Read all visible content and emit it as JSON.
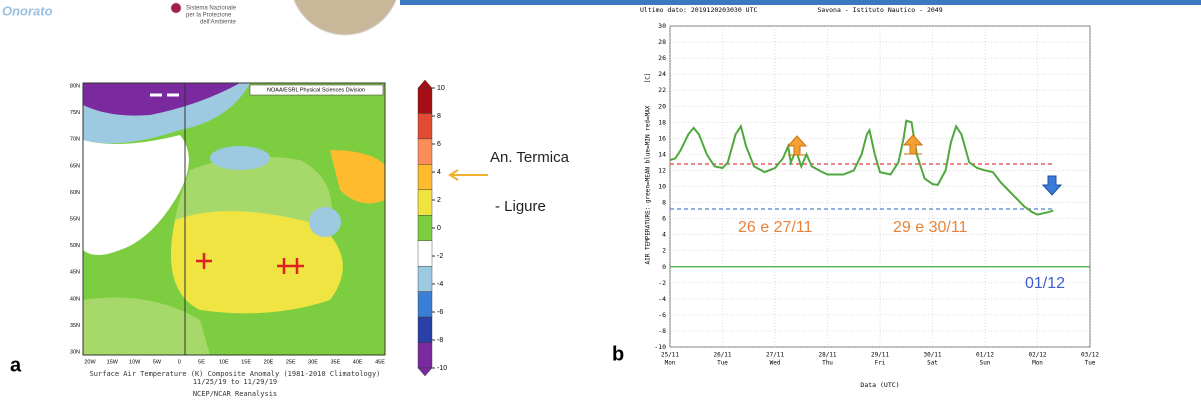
{
  "header": {
    "brand": "Onorato",
    "logo_text": [
      "Sistema Nazionale",
      "per la Protezione",
      "dell'Ambiente"
    ]
  },
  "panel_a": {
    "label": "a",
    "map_header": "NOAA/ESRL Physical Sciences Division",
    "lat_labels": [
      "80N",
      "75N",
      "70N",
      "65N",
      "60N",
      "55N",
      "50N",
      "45N",
      "40N",
      "35N",
      "30N"
    ],
    "lon_labels": [
      "20W",
      "15W",
      "10W",
      "5W",
      "0",
      "5E",
      "10E",
      "15E",
      "20E",
      "25E",
      "30E",
      "35E",
      "40E",
      "45E"
    ],
    "colorbar": {
      "ticks": [
        10,
        8,
        6,
        4,
        2,
        0,
        -2,
        -4,
        -6,
        -8,
        -10
      ],
      "colors": [
        "#a50f15",
        "#e34a33",
        "#fc8d59",
        "#fdbb2d",
        "#f0e442",
        "#7ccd3f",
        "#ffffff",
        "#9ecae1",
        "#3a7fd5",
        "#2b3fa8",
        "#7a2a9e"
      ]
    },
    "caption": [
      "Surface Air Temperature (K) Composite Anomaly (1981-2010 Climatology)",
      "11/25/19 to 11/29/19",
      "NCEP/NCAR Reanalysis"
    ]
  },
  "notes": {
    "anomaly": "An. Termica",
    "region": "- Ligure"
  },
  "chart_data": {
    "type": "line",
    "label": "b",
    "subtitle": "Ultimo dato: 2019120203030 UTC",
    "title": "Savona - Istituto Nautico - 2049",
    "ylabel": "AIR TEMPERATURE: green=MEAN blue=MIN red=MAX",
    "yunit": "[C]",
    "xlabel": "Data (UTC)",
    "xlim": [
      0,
      8
    ],
    "xticks": [
      {
        "value": 0,
        "label": "25/11"
      },
      {
        "value": 1,
        "label": "26/11"
      },
      {
        "value": 2,
        "label": "27/11"
      },
      {
        "value": 3,
        "label": "28/11"
      },
      {
        "value": 4,
        "label": "29/11"
      },
      {
        "value": 5,
        "label": "30/11"
      },
      {
        "value": 6,
        "label": "01/12"
      },
      {
        "value": 7,
        "label": "02/12"
      },
      {
        "value": 8,
        "label": "03/12"
      }
    ],
    "xtick_days": [
      "Mon",
      "Tue",
      "Wed",
      "Thu",
      "Fri",
      "Sat",
      "Sun",
      "Mon",
      "Tue"
    ],
    "ylim": [
      -10,
      30
    ],
    "yticks": [
      -10,
      -8,
      -6,
      -4,
      -2,
      0,
      2,
      4,
      6,
      8,
      10,
      12,
      14,
      16,
      18,
      20,
      22,
      24,
      26,
      28,
      30
    ],
    "grid": true,
    "x": [
      0,
      0.1,
      0.2,
      0.35,
      0.45,
      0.55,
      0.7,
      0.85,
      1.0,
      1.1,
      1.25,
      1.35,
      1.45,
      1.6,
      1.8,
      2.0,
      2.15,
      2.25,
      2.3,
      2.4,
      2.5,
      2.6,
      2.7,
      2.9,
      3.0,
      3.3,
      3.5,
      3.65,
      3.75,
      3.8,
      3.9,
      4.0,
      4.2,
      4.35,
      4.45,
      4.5,
      4.6,
      4.7,
      4.85,
      5.0,
      5.1,
      5.25,
      5.35,
      5.45,
      5.55,
      5.7,
      5.85,
      6.0,
      6.15,
      6.3,
      6.45,
      6.6,
      6.75,
      6.9,
      7.0,
      7.2,
      7.3
    ],
    "series": [
      {
        "color": "#4fa83d",
        "values": [
          13.3,
          13.5,
          14.5,
          16.5,
          17.3,
          16.5,
          14,
          12.5,
          12.3,
          13,
          16.5,
          17.5,
          15,
          12.5,
          11.8,
          12.3,
          13.5,
          15,
          13,
          14.5,
          12.5,
          14,
          12.5,
          11.8,
          11.5,
          11.5,
          12,
          14,
          16.5,
          17,
          14,
          11.8,
          11.5,
          13,
          16,
          18.2,
          18,
          14,
          11,
          10.3,
          10.2,
          12,
          15.5,
          17.5,
          16.5,
          13,
          12.3,
          12,
          11.8,
          10.5,
          9.5,
          8.5,
          7.5,
          6.8,
          6.5,
          6.8,
          7.0
        ]
      }
    ],
    "hlines": [
      {
        "value": 12.8,
        "color": "#e04040",
        "dashed": true,
        "end": 7.3
      },
      {
        "value": 7.2,
        "color": "#5080d0",
        "dashed": true,
        "end": 7.3
      },
      {
        "value": 0,
        "color": "#3aaa3a",
        "dashed": false,
        "end": 8
      }
    ],
    "annotations": [
      {
        "text": "26 e  27/11",
        "color": "#e8823a"
      },
      {
        "text": "29  e  30/11",
        "color": "#e8823a"
      },
      {
        "text": "01/12",
        "color": "#3a5fc8"
      }
    ]
  }
}
